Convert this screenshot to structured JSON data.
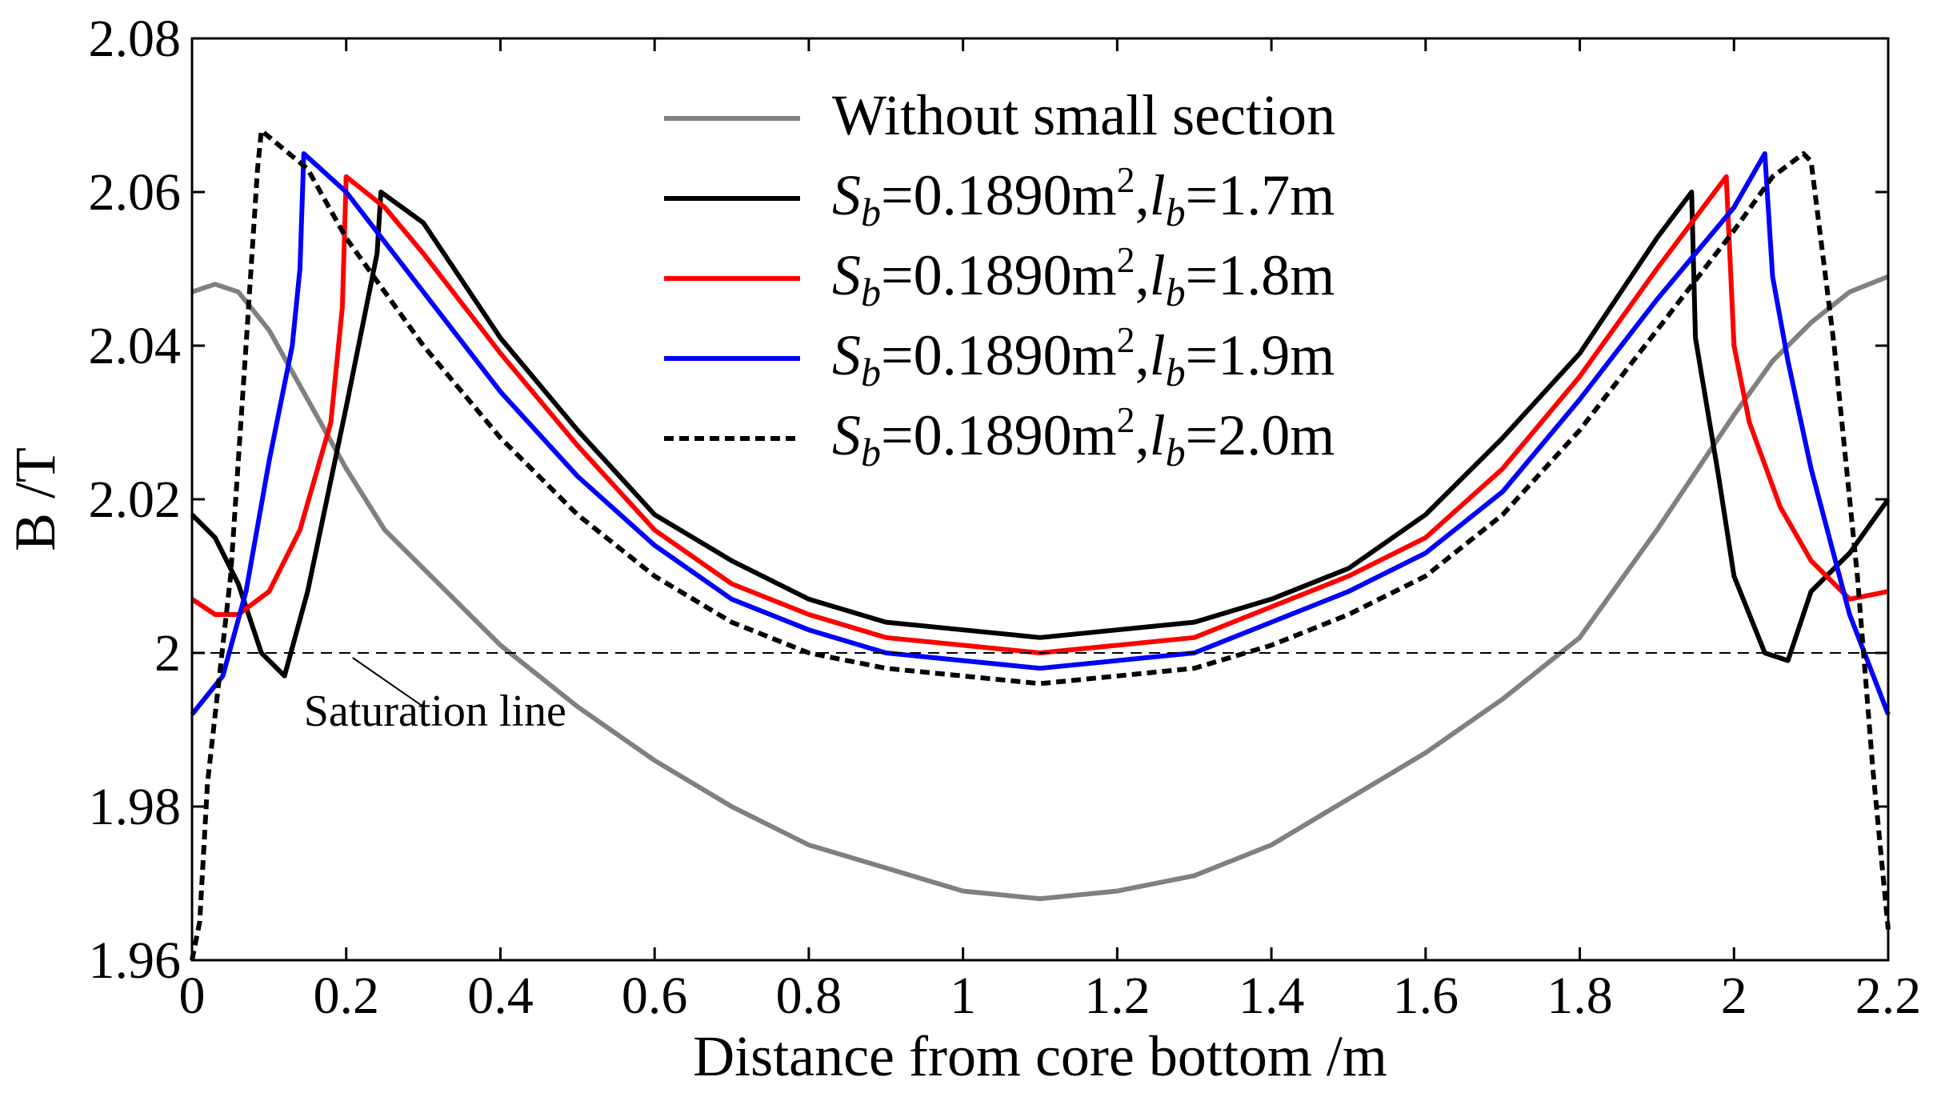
{
  "chart_data": {
    "type": "line",
    "title": "",
    "xlabel": "Distance from core bottom /m",
    "ylabel": "B /T",
    "xlim": [
      0,
      2.2
    ],
    "ylim": [
      1.96,
      2.08
    ],
    "xticks": [
      0,
      0.2,
      0.4,
      0.6,
      0.8,
      1,
      1.2,
      1.4,
      1.6,
      1.8,
      2,
      2.2
    ],
    "xtick_labels": [
      "0",
      "0.2",
      "0.4",
      "0.6",
      "0.8",
      "1",
      "1.2",
      "1.4",
      "1.6",
      "1.8",
      "2",
      "2.2"
    ],
    "yticks": [
      1.96,
      1.98,
      2,
      2.02,
      2.04,
      2.06,
      2.08
    ],
    "ytick_labels": [
      "1.96",
      "1.98",
      "2",
      "2.02",
      "2.04",
      "2.06",
      "2.08"
    ],
    "grid": false,
    "legend_position": "top-center",
    "saturation_line": {
      "y": 2.0,
      "label": "Saturation line",
      "anchor": [
        0.2,
        2.0
      ]
    },
    "series": [
      {
        "name": "Without small section",
        "legend": {
          "prefix": "Without small section"
        },
        "color": "#808080",
        "dash": "solid",
        "points": [
          [
            0,
            2.047
          ],
          [
            0.03,
            2.048
          ],
          [
            0.06,
            2.047
          ],
          [
            0.1,
            2.042
          ],
          [
            0.15,
            2.033
          ],
          [
            0.2,
            2.024
          ],
          [
            0.25,
            2.016
          ],
          [
            0.3,
            2.011
          ],
          [
            0.35,
            2.006
          ],
          [
            0.4,
            2.001
          ],
          [
            0.5,
            1.993
          ],
          [
            0.6,
            1.986
          ],
          [
            0.7,
            1.98
          ],
          [
            0.8,
            1.975
          ],
          [
            0.9,
            1.972
          ],
          [
            1.0,
            1.969
          ],
          [
            1.1,
            1.968
          ],
          [
            1.2,
            1.969
          ],
          [
            1.3,
            1.971
          ],
          [
            1.4,
            1.975
          ],
          [
            1.5,
            1.981
          ],
          [
            1.6,
            1.987
          ],
          [
            1.7,
            1.994
          ],
          [
            1.8,
            2.002
          ],
          [
            1.9,
            2.016
          ],
          [
            2.0,
            2.031
          ],
          [
            2.05,
            2.038
          ],
          [
            2.1,
            2.043
          ],
          [
            2.15,
            2.047
          ],
          [
            2.2,
            2.049
          ]
        ]
      },
      {
        "name": "Sb=0.1890m2, lb=1.7m",
        "legend": {
          "prefix": "S",
          "sub1": "b",
          "mid": "=0.1890m",
          "sup": "2",
          "comma": ",",
          "l": "l",
          "sub2": "b",
          "suffix": "=1.7m"
        },
        "color": "#000000",
        "dash": "solid",
        "points": [
          [
            0,
            2.018
          ],
          [
            0.03,
            2.015
          ],
          [
            0.06,
            2.009
          ],
          [
            0.09,
            2.0
          ],
          [
            0.12,
            1.997
          ],
          [
            0.15,
            2.008
          ],
          [
            0.2,
            2.032
          ],
          [
            0.24,
            2.052
          ],
          [
            0.245,
            2.06
          ],
          [
            0.3,
            2.056
          ],
          [
            0.4,
            2.041
          ],
          [
            0.5,
            2.029
          ],
          [
            0.6,
            2.018
          ],
          [
            0.7,
            2.012
          ],
          [
            0.8,
            2.007
          ],
          [
            0.9,
            2.004
          ],
          [
            1.0,
            2.003
          ],
          [
            1.1,
            2.002
          ],
          [
            1.2,
            2.003
          ],
          [
            1.3,
            2.004
          ],
          [
            1.4,
            2.007
          ],
          [
            1.5,
            2.011
          ],
          [
            1.6,
            2.018
          ],
          [
            1.7,
            2.028
          ],
          [
            1.8,
            2.039
          ],
          [
            1.9,
            2.054
          ],
          [
            1.945,
            2.06
          ],
          [
            1.95,
            2.041
          ],
          [
            1.98,
            2.023
          ],
          [
            2.0,
            2.01
          ],
          [
            2.04,
            2.0
          ],
          [
            2.07,
            1.999
          ],
          [
            2.1,
            2.008
          ],
          [
            2.15,
            2.013
          ],
          [
            2.2,
            2.02
          ]
        ]
      },
      {
        "name": "Sb=0.1890m2, lb=1.8m",
        "legend": {
          "prefix": "S",
          "sub1": "b",
          "mid": "=0.1890m",
          "sup": "2",
          "comma": ",",
          "l": "l",
          "sub2": "b",
          "suffix": "=1.8m"
        },
        "color": "#ff0000",
        "dash": "solid",
        "points": [
          [
            0,
            2.007
          ],
          [
            0.03,
            2.005
          ],
          [
            0.06,
            2.005
          ],
          [
            0.1,
            2.008
          ],
          [
            0.14,
            2.016
          ],
          [
            0.18,
            2.03
          ],
          [
            0.195,
            2.045
          ],
          [
            0.2,
            2.062
          ],
          [
            0.25,
            2.058
          ],
          [
            0.3,
            2.052
          ],
          [
            0.4,
            2.039
          ],
          [
            0.5,
            2.027
          ],
          [
            0.6,
            2.016
          ],
          [
            0.7,
            2.009
          ],
          [
            0.8,
            2.005
          ],
          [
            0.9,
            2.002
          ],
          [
            1.0,
            2.001
          ],
          [
            1.1,
            2.0
          ],
          [
            1.2,
            2.001
          ],
          [
            1.3,
            2.002
          ],
          [
            1.4,
            2.006
          ],
          [
            1.5,
            2.01
          ],
          [
            1.6,
            2.015
          ],
          [
            1.7,
            2.024
          ],
          [
            1.8,
            2.036
          ],
          [
            1.9,
            2.05
          ],
          [
            1.99,
            2.062
          ],
          [
            2.0,
            2.04
          ],
          [
            2.02,
            2.03
          ],
          [
            2.06,
            2.019
          ],
          [
            2.1,
            2.012
          ],
          [
            2.15,
            2.007
          ],
          [
            2.2,
            2.008
          ]
        ]
      },
      {
        "name": "Sb=0.1890m2, lb=1.9m",
        "legend": {
          "prefix": "S",
          "sub1": "b",
          "mid": "=0.1890m",
          "sup": "2",
          "comma": ",",
          "l": "l",
          "sub2": "b",
          "suffix": "=1.9m"
        },
        "color": "#0000ff",
        "dash": "solid",
        "points": [
          [
            0,
            1.992
          ],
          [
            0.04,
            1.997
          ],
          [
            0.07,
            2.008
          ],
          [
            0.1,
            2.025
          ],
          [
            0.13,
            2.04
          ],
          [
            0.14,
            2.05
          ],
          [
            0.145,
            2.065
          ],
          [
            0.2,
            2.06
          ],
          [
            0.3,
            2.047
          ],
          [
            0.4,
            2.034
          ],
          [
            0.5,
            2.023
          ],
          [
            0.6,
            2.014
          ],
          [
            0.7,
            2.007
          ],
          [
            0.8,
            2.003
          ],
          [
            0.9,
            2.0
          ],
          [
            1.0,
            1.999
          ],
          [
            1.1,
            1.998
          ],
          [
            1.2,
            1.999
          ],
          [
            1.3,
            2.0
          ],
          [
            1.4,
            2.004
          ],
          [
            1.5,
            2.008
          ],
          [
            1.6,
            2.013
          ],
          [
            1.7,
            2.021
          ],
          [
            1.8,
            2.033
          ],
          [
            1.9,
            2.046
          ],
          [
            2.0,
            2.058
          ],
          [
            2.04,
            2.065
          ],
          [
            2.05,
            2.049
          ],
          [
            2.07,
            2.038
          ],
          [
            2.1,
            2.024
          ],
          [
            2.15,
            2.005
          ],
          [
            2.2,
            1.992
          ]
        ]
      },
      {
        "name": "Sb=0.1890m2, lb=2.0m",
        "legend": {
          "prefix": "S",
          "sub1": "b",
          "mid": "=0.1890m",
          "sup": "2",
          "comma": ",",
          "l": "l",
          "sub2": "b",
          "suffix": "=2.0m"
        },
        "color": "#000000",
        "dash": "dotted",
        "points": [
          [
            0,
            1.96
          ],
          [
            0.01,
            1.965
          ],
          [
            0.02,
            1.983
          ],
          [
            0.05,
            2.01
          ],
          [
            0.07,
            2.04
          ],
          [
            0.085,
            2.063
          ],
          [
            0.09,
            2.068
          ],
          [
            0.15,
            2.063
          ],
          [
            0.2,
            2.054
          ],
          [
            0.3,
            2.04
          ],
          [
            0.4,
            2.028
          ],
          [
            0.5,
            2.018
          ],
          [
            0.6,
            2.01
          ],
          [
            0.7,
            2.004
          ],
          [
            0.8,
            2.0
          ],
          [
            0.9,
            1.998
          ],
          [
            1.0,
            1.997
          ],
          [
            1.1,
            1.996
          ],
          [
            1.2,
            1.997
          ],
          [
            1.3,
            1.998
          ],
          [
            1.4,
            2.001
          ],
          [
            1.5,
            2.005
          ],
          [
            1.6,
            2.01
          ],
          [
            1.7,
            2.018
          ],
          [
            1.8,
            2.029
          ],
          [
            1.9,
            2.042
          ],
          [
            2.0,
            2.055
          ],
          [
            2.05,
            2.062
          ],
          [
            2.09,
            2.065
          ],
          [
            2.1,
            2.064
          ],
          [
            2.13,
            2.04
          ],
          [
            2.16,
            2.01
          ],
          [
            2.18,
            1.985
          ],
          [
            2.2,
            1.964
          ]
        ]
      }
    ]
  }
}
